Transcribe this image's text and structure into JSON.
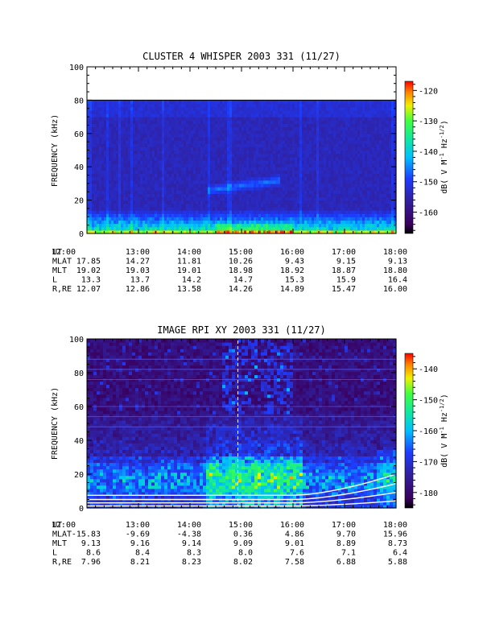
{
  "chart_data": [
    {
      "type": "heatmap",
      "title": "CLUSTER 4 WHISPER 2003 331 (11/27)",
      "ylabel": "FREQUENCY (kHz)",
      "ylim": [
        0,
        100
      ],
      "y_ticks": [
        "0",
        "20",
        "40",
        "60",
        "80",
        "100"
      ],
      "data_ceiling_khz": 80,
      "colorbar": {
        "label": "dB( V M⁻¹ Hz⁻¹ᐟ²)",
        "label_parts": {
          "base": "dB( V M",
          "sup1": "-1",
          "mid": " Hz",
          "sup2": "-1/2",
          "end": ")"
        },
        "ticks": [
          "-120",
          "-130",
          "-140",
          "-150",
          "-160"
        ],
        "range": [
          -167,
          -117
        ]
      },
      "features": [
        {
          "name": "low-frequency hiss band",
          "freq_khz": [
            0,
            15
          ],
          "level_db": -148
        },
        {
          "name": "diffuse enhancement",
          "time": [
            "14:20",
            "15:45"
          ],
          "freq_khz": [
            24,
            32
          ],
          "level_db": -152
        }
      ],
      "ephemeris": {
        "rows": [
          {
            "label": "UT",
            "values": [
              "12:00",
              "13:00",
              "14:00",
              "15:00",
              "16:00",
              "17:00",
              "18:00"
            ]
          },
          {
            "label": "MLAT",
            "values": [
              "17.85",
              "14.27",
              "11.81",
              "10.26",
              "9.43",
              "9.15",
              "9.13"
            ]
          },
          {
            "label": "MLT",
            "values": [
              "19.02",
              "19.03",
              "19.01",
              "18.98",
              "18.92",
              "18.87",
              "18.80"
            ]
          },
          {
            "label": "L",
            "values": [
              "13.3",
              "13.7",
              "14.2",
              "14.7",
              "15.3",
              "15.9",
              "16.4"
            ]
          },
          {
            "label": "R,RE",
            "values": [
              "12.07",
              "12.86",
              "13.58",
              "14.26",
              "14.89",
              "15.47",
              "16.00"
            ]
          }
        ]
      }
    },
    {
      "type": "heatmap",
      "title": "IMAGE RPI XY 2003 331 (11/27)",
      "ylabel": "FREQUENCY (kHz)",
      "ylim": [
        0,
        100
      ],
      "y_ticks": [
        "0",
        "20",
        "40",
        "60",
        "80",
        "100"
      ],
      "colorbar": {
        "label_parts": {
          "base": "dB( V M",
          "sup1": "-1",
          "mid": " Hz",
          "sup2": "-1/2",
          "end": ")"
        },
        "ticks": [
          "-140",
          "-150",
          "-160",
          "-170",
          "-180"
        ],
        "range": [
          -185,
          -135
        ]
      },
      "features": [
        {
          "name": "plasmaspheric hiss band",
          "freq_khz": [
            5,
            30
          ],
          "level_db": -160
        },
        {
          "name": "white emission lines rising after 16:30",
          "freq_khz": [
            1,
            20
          ]
        }
      ],
      "ephemeris": {
        "rows": [
          {
            "label": "UT",
            "values": [
              "12:00",
              "13:00",
              "14:00",
              "15:00",
              "16:00",
              "17:00",
              "18:00"
            ]
          },
          {
            "label": "MLAT",
            "values": [
              "-15.83",
              "-9.69",
              "-4.38",
              "0.36",
              "4.86",
              "9.70",
              "15.96"
            ]
          },
          {
            "label": "MLT",
            "values": [
              "9.13",
              "9.16",
              "9.14",
              "9.09",
              "9.01",
              "8.89",
              "8.73"
            ]
          },
          {
            "label": "L",
            "values": [
              "8.6",
              "8.4",
              "8.3",
              "8.0",
              "7.6",
              "7.1",
              "6.4"
            ]
          },
          {
            "label": "R,RE",
            "values": [
              "7.96",
              "8.21",
              "8.23",
              "8.02",
              "7.58",
              "6.88",
              "5.88"
            ]
          }
        ]
      }
    }
  ]
}
